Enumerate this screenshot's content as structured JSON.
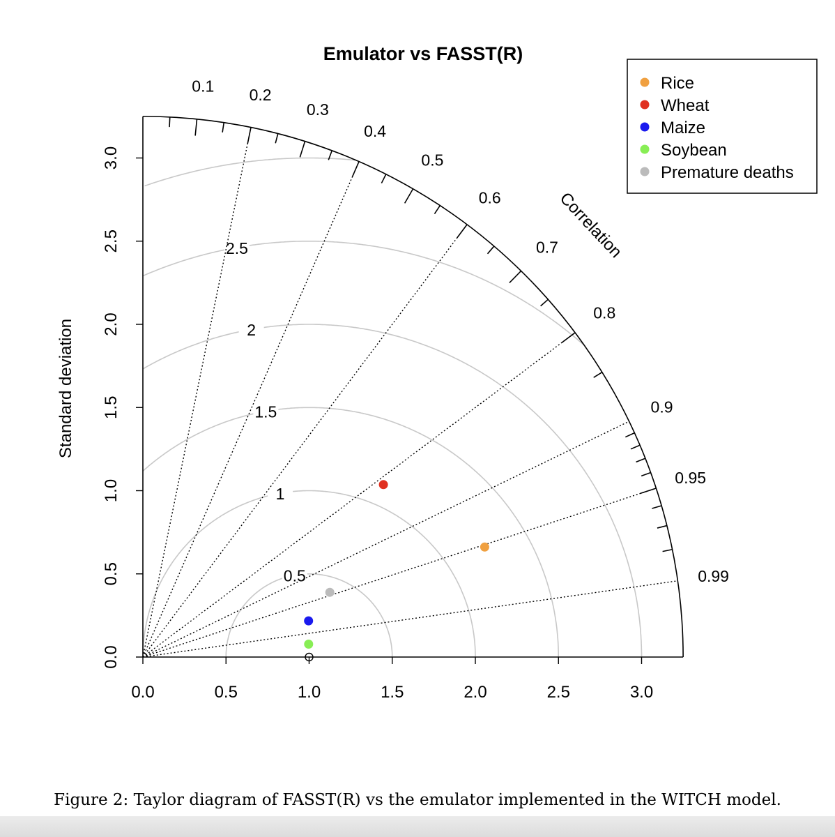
{
  "caption": "Figure 2: Taylor diagram of FASST(R) vs the emulator implemented in the WITCH model.",
  "chart_data": {
    "type": "taylor",
    "title": "Emulator vs FASST(R)",
    "ylabel": "Standard deviation",
    "correlation_label": "Correlation",
    "sd_max": 3.25,
    "reference_sd": 1.0,
    "x_ticks": [
      "0.0",
      "0.5",
      "1.0",
      "1.5",
      "2.0",
      "2.5",
      "3.0"
    ],
    "y_ticks": [
      "0.0",
      "0.5",
      "1.0",
      "1.5",
      "2.0",
      "2.5",
      "3.0"
    ],
    "correlation_labels": [
      "0.1",
      "0.2",
      "0.3",
      "0.4",
      "0.5",
      "0.6",
      "0.7",
      "0.8",
      "0.9",
      "0.95",
      "0.99"
    ],
    "correlation_lines": [
      0.2,
      0.4,
      0.6,
      0.8,
      0.9,
      0.95,
      0.99
    ],
    "rms_labels": [
      "0.5",
      "1",
      "1.5",
      "2",
      "2.5"
    ],
    "legend_position": "top-right",
    "series": [
      {
        "name": "Rice",
        "color": "#f0a040",
        "sd": 2.16,
        "correlation": 0.952
      },
      {
        "name": "Wheat",
        "color": "#e03020",
        "sd": 1.78,
        "correlation": 0.813
      },
      {
        "name": "Maize",
        "color": "#1a1aee",
        "sd": 1.02,
        "correlation": 0.977
      },
      {
        "name": "Soybean",
        "color": "#88ee55",
        "sd": 1.0,
        "correlation": 0.997
      },
      {
        "name": "Premature deaths",
        "color": "#bbbbbb",
        "sd": 1.19,
        "correlation": 0.945
      }
    ]
  }
}
